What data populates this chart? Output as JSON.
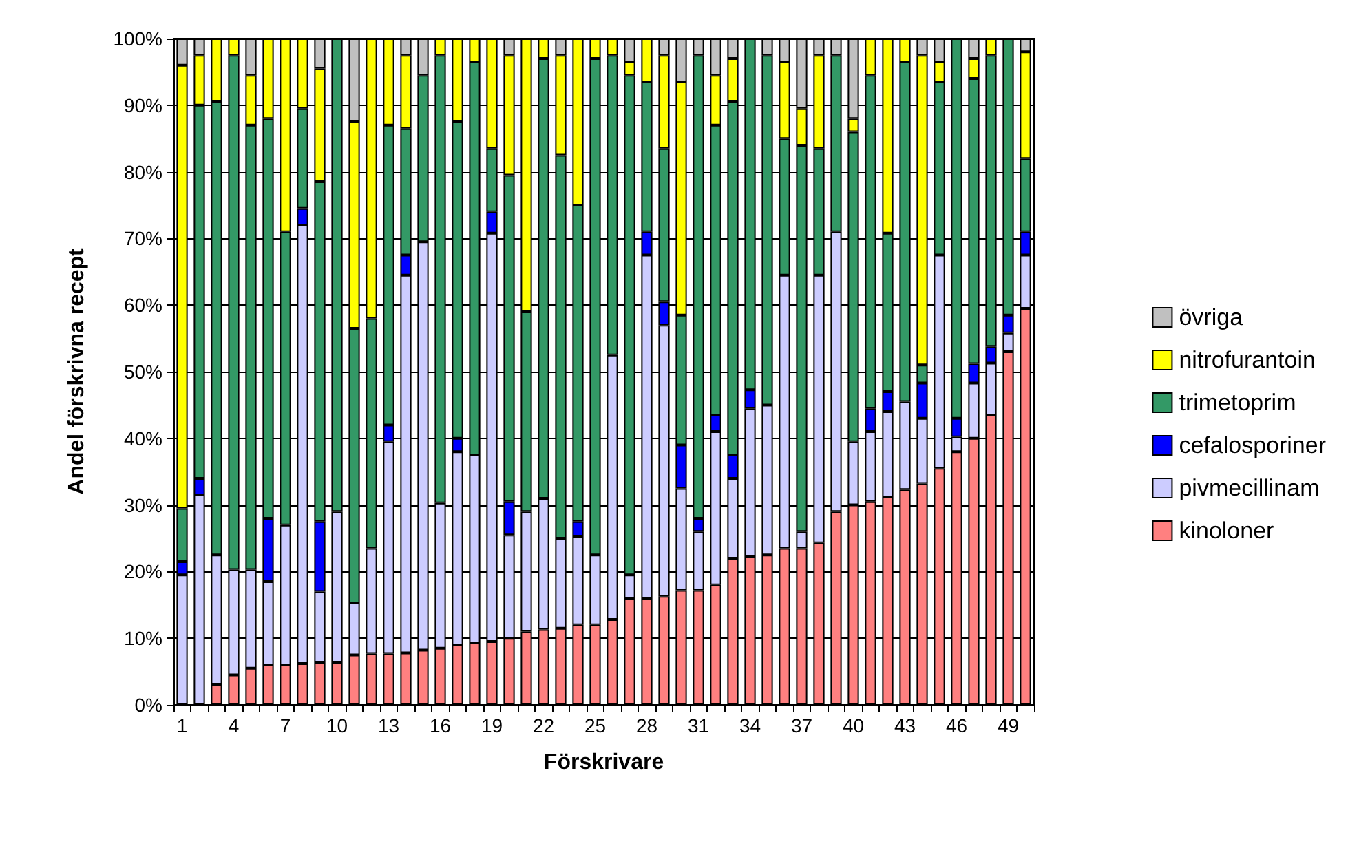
{
  "chart_data": {
    "type": "bar",
    "stacked": true,
    "xlabel": "Förskrivare",
    "ylabel": "Andel förskrivna recept",
    "categories": [
      "1",
      null,
      null,
      "4",
      null,
      null,
      "7",
      null,
      null,
      "10",
      null,
      null,
      "13",
      null,
      null,
      "16",
      null,
      null,
      "19",
      null,
      null,
      "22",
      null,
      null,
      "25",
      null,
      null,
      "28",
      null,
      null,
      "31",
      null,
      null,
      "34",
      null,
      null,
      "37",
      null,
      null,
      "40",
      null,
      null,
      "43",
      null,
      null,
      "46",
      null,
      null,
      "49",
      null
    ],
    "series": [
      {
        "name": "kinoloner",
        "color": "#ff8080",
        "values": [
          0,
          0,
          3,
          4.5,
          5.5,
          6,
          6,
          6.2,
          6.3,
          6.3,
          7.5,
          7.7,
          7.7,
          7.8,
          8.2,
          8.5,
          9,
          9.3,
          9.5,
          10,
          11,
          11.3,
          11.5,
          12,
          12,
          12.8,
          16,
          16,
          16.3,
          17.2,
          17.2,
          18,
          22,
          22.2,
          22.5,
          23.5,
          23.5,
          24.3,
          29,
          30,
          30.5,
          31.2,
          32.3,
          33.2,
          35.5,
          38,
          40,
          43.5,
          53,
          59.5
        ]
      },
      {
        "name": "pivmecillinam",
        "color": "#ccccff",
        "values": [
          19.5,
          31.5,
          19.5,
          15.8,
          14.8,
          12.5,
          21,
          65.8,
          10.7,
          22.7,
          7.8,
          15.8,
          31.8,
          56.7,
          61.3,
          21.8,
          29,
          28.2,
          61.3,
          15.5,
          18,
          19.7,
          13.5,
          13.3,
          10.5,
          39.7,
          3.5,
          51.5,
          40.7,
          15.3,
          8.8,
          23,
          12,
          22.3,
          22.5,
          41,
          2.5,
          40.2,
          42,
          9.5,
          10.5,
          12.8,
          13.2,
          9.8,
          32,
          2.2,
          8.3,
          7.8,
          2.8,
          8
        ]
      },
      {
        "name": "cefalosporiner",
        "color": "#0000ff",
        "values": [
          2,
          2.5,
          0,
          0,
          0,
          9.5,
          0,
          2.5,
          10.5,
          0,
          0,
          0,
          2.5,
          3,
          0,
          0,
          2,
          0,
          3.2,
          5,
          0,
          0,
          0,
          2.2,
          0,
          0,
          0,
          3.5,
          3.5,
          6.5,
          2,
          2.5,
          3.5,
          2.8,
          0,
          0,
          0,
          0,
          0,
          0,
          3.5,
          3,
          0,
          5.3,
          0,
          2.8,
          2.9,
          2.5,
          2.7,
          3.5
        ]
      },
      {
        "name": "trimetoprim",
        "color": "#339966",
        "values": [
          8,
          56,
          68,
          77.2,
          66.7,
          60,
          44,
          15,
          51,
          71,
          41.2,
          34.5,
          45,
          19,
          25,
          67.2,
          47.5,
          59,
          9.5,
          49,
          30,
          66,
          57.5,
          47.5,
          74.5,
          45,
          75,
          22.5,
          23,
          19.5,
          69.5,
          43.5,
          53,
          52.7,
          52.5,
          20.5,
          58,
          19,
          26.5,
          46.5,
          50,
          23.8,
          51,
          2.7,
          26,
          57,
          42.8,
          43.7,
          41.5,
          11
        ]
      },
      {
        "name": "nitrofurantoin",
        "color": "#ffff00",
        "values": [
          66.5,
          7.5,
          9.5,
          2.5,
          7.5,
          12,
          29,
          10.5,
          17,
          0,
          31,
          42,
          13,
          11,
          0,
          2.5,
          12.5,
          3.5,
          16.5,
          18,
          41,
          3,
          15,
          25,
          3,
          2.5,
          2,
          6.5,
          14,
          35,
          0,
          7.5,
          6.5,
          0,
          0,
          11.5,
          5.5,
          14,
          0,
          2,
          5.5,
          29.2,
          3.5,
          46.5,
          3,
          0,
          3,
          2.5,
          0,
          16
        ]
      },
      {
        "name": "övriga",
        "color": "#c0c0c0",
        "values": [
          4,
          2.5,
          0,
          0,
          5.5,
          0,
          0,
          0,
          4.5,
          0,
          12.5,
          0,
          0,
          2.5,
          5.5,
          0,
          0,
          0,
          0,
          2.5,
          0,
          0,
          2.5,
          0,
          0,
          0,
          3.5,
          0,
          2.5,
          6.5,
          2.5,
          5.5,
          3,
          0,
          2.5,
          3.5,
          10.5,
          2.5,
          2.5,
          12,
          0,
          0,
          0,
          2.5,
          3.5,
          0,
          3,
          0,
          0,
          2
        ]
      }
    ],
    "ylim": [
      0,
      100
    ],
    "yticks": [
      {
        "value": 0,
        "label": "0%"
      },
      {
        "value": 10,
        "label": "10%"
      },
      {
        "value": 20,
        "label": "20%"
      },
      {
        "value": 30,
        "label": "30%"
      },
      {
        "value": 40,
        "label": "40%"
      },
      {
        "value": 50,
        "label": "50%"
      },
      {
        "value": 60,
        "label": "60%"
      },
      {
        "value": 70,
        "label": "70%"
      },
      {
        "value": 80,
        "label": "80%"
      },
      {
        "value": 90,
        "label": "90%"
      },
      {
        "value": 100,
        "label": "100%"
      }
    ],
    "grid": "y",
    "legend": "right"
  }
}
